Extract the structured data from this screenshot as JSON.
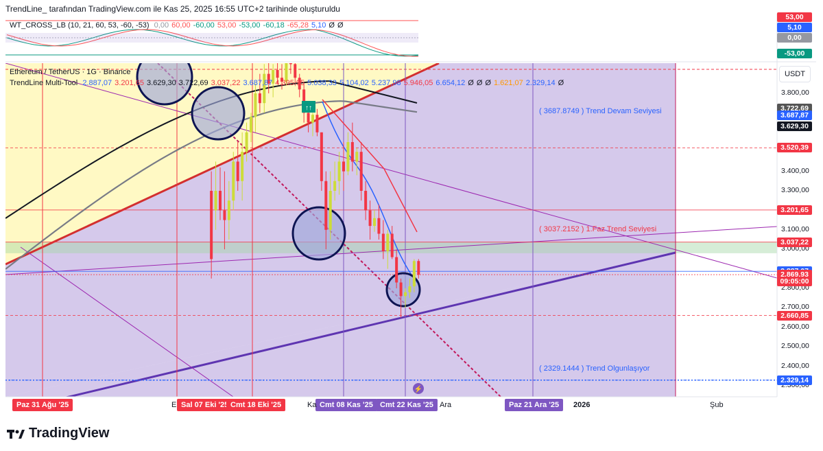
{
  "header": {
    "text": "TrendLine_ tarafından TradingView.com ile Kas 25, 2025 16:55 UTC+2 tarihinde oluşturuldu"
  },
  "oscillator": {
    "title": "WT_CROSS_LB (10, 21, 60, 53, -60, -53)",
    "values": [
      "0,00",
      "60,00",
      "-60,00",
      "53,00",
      "-53,00",
      "-60,18",
      "-65,28",
      "5,10",
      "Ø",
      "Ø"
    ],
    "value_colors": [
      "#9598a1",
      "#ff5252",
      "#089981",
      "#ff5252",
      "#089981",
      "#089981",
      "#ff5252",
      "#2962ff",
      "#131722",
      "#131722"
    ],
    "axis_tags": [
      {
        "label": "53,00",
        "color": "#f23645"
      },
      {
        "label": "5,10",
        "color": "#2962ff"
      },
      {
        "label": "0,00",
        "color": "#9598a1"
      },
      {
        "label": "-53,00",
        "color": "#089981"
      }
    ]
  },
  "main_legend": {
    "symbol": "Ethereum / TetherUS · 1G · Binance",
    "tool": "TrendLine Multi-Tool",
    "tool_values": [
      "2.887,07",
      "3.201,65",
      "3.629,30",
      "3.722,69",
      "3.037,22",
      "3.687,87",
      "4.395,95",
      "5.038,33",
      "5.104,02",
      "5.237,98",
      "5.946,05",
      "6.654,12",
      "Ø",
      "Ø",
      "Ø",
      "1.621,07",
      "2.329,14",
      "Ø"
    ],
    "tool_value_colors": [
      "#2962ff",
      "#f23645",
      "#131722",
      "#131722",
      "#f23645",
      "#2962ff",
      "#f23645",
      "#2962ff",
      "#2962ff",
      "#2962ff",
      "#f23645",
      "#2962ff",
      "#131722",
      "#131722",
      "#131722",
      "#ff9800",
      "#2962ff",
      "#131722"
    ]
  },
  "currency": "USDT",
  "price_axis": {
    "ticks": [
      "3.800,00",
      "3.400,00",
      "3.300,00",
      "3.100,00",
      "3.000,00",
      "2.800,00",
      "2.700,00",
      "2.600,00",
      "2.500,00",
      "2.400,00",
      "2.300,00"
    ],
    "tags": [
      {
        "label": "3.722,69",
        "color": "#555555",
        "price": 3722.69
      },
      {
        "label": "3.687,87",
        "color": "#2962ff",
        "price": 3687.87
      },
      {
        "label": "3.629,30",
        "color": "#131722",
        "price": 3629.3
      },
      {
        "label": "3.520,39",
        "color": "#f23645",
        "price": 3520.39
      },
      {
        "label": "3.201,65",
        "color": "#f23645",
        "price": 3201.65
      },
      {
        "label": "3.037,22",
        "color": "#f23645",
        "price": 3037.22
      },
      {
        "label": "2.887,07",
        "color": "#2962ff",
        "price": 2887.07
      },
      {
        "label": "2.869,93",
        "color": "#f23645",
        "price": 2869.93
      },
      {
        "label": "09:05:00",
        "color": "#f23645",
        "price": 2835
      },
      {
        "label": "2.660,85",
        "color": "#f23645",
        "price": 2660.85
      },
      {
        "label": "2.329,14",
        "color": "#2962ff",
        "price": 2329.14
      }
    ]
  },
  "annotations": [
    {
      "text": "( 3687.8749  ) Trend Devam Seviyesi",
      "color": "#2962ff",
      "price": 3705
    },
    {
      "text": "( 3037.2152  ) 1.Faz Trend Seviyesi",
      "color": "#f23645",
      "price": 3100
    },
    {
      "text": "( 2329.1444  ) Trend Olgunlaşıyor",
      "color": "#2962ff",
      "price": 2385
    }
  ],
  "time_axis": {
    "badges": [
      {
        "label": "Paz 31 Ağu '25",
        "color": "#f23645"
      },
      {
        "label": "Sal 07 Eki '25",
        "color": "#f23645"
      },
      {
        "label": "Cmt 18 Eki '25",
        "color": "#f23645"
      },
      {
        "label": "Cmt 08 Kas '25",
        "color": "#7e57c2"
      },
      {
        "label": "Cmt 22 Kas '25",
        "color": "#7e57c2"
      },
      {
        "label": "Paz 21 Ara '25",
        "color": "#7e57c2"
      }
    ],
    "plain": [
      "E",
      "Ka",
      "Ara",
      "2026",
      "Şub"
    ]
  },
  "footer": {
    "brand": "TradingView"
  },
  "chart_data": {
    "type": "candlestick",
    "symbol": "ETHUSDT",
    "timeframe": "1D",
    "ylim": [
      2300,
      3870
    ],
    "candles": [
      {
        "x": "2025-10-09",
        "o": 3300,
        "h": 3400,
        "l": 2850,
        "c": 2950
      },
      {
        "x": "2025-10-10",
        "o": 3200,
        "h": 3450,
        "l": 3100,
        "c": 3300
      },
      {
        "x": "2025-10-11",
        "o": 3300,
        "h": 3420,
        "l": 3150,
        "c": 3200
      },
      {
        "x": "2025-10-12",
        "o": 3200,
        "h": 3400,
        "l": 3000,
        "c": 3150
      },
      {
        "x": "2025-10-13",
        "o": 3150,
        "h": 3350,
        "l": 3050,
        "c": 3250
      },
      {
        "x": "2025-10-14",
        "o": 3250,
        "h": 3500,
        "l": 3200,
        "c": 3450
      },
      {
        "x": "2025-10-15",
        "o": 3450,
        "h": 3550,
        "l": 3300,
        "c": 3350
      },
      {
        "x": "2025-10-16",
        "o": 3350,
        "h": 3600,
        "l": 3250,
        "c": 3500
      },
      {
        "x": "2025-10-17",
        "o": 3500,
        "h": 3650,
        "l": 3450,
        "c": 3600
      },
      {
        "x": "2025-10-18",
        "o": 3600,
        "h": 3700,
        "l": 3550,
        "c": 3680
      },
      {
        "x": "2025-10-19",
        "o": 3680,
        "h": 3850,
        "l": 3600,
        "c": 3800
      },
      {
        "x": "2025-10-20",
        "o": 3800,
        "h": 3900,
        "l": 3700,
        "c": 3750
      },
      {
        "x": "2025-10-21",
        "o": 3750,
        "h": 3950,
        "l": 3700,
        "c": 3900
      },
      {
        "x": "2025-10-22",
        "o": 3900,
        "h": 4000,
        "l": 3800,
        "c": 3850
      },
      {
        "x": "2025-10-23",
        "o": 3850,
        "h": 3950,
        "l": 3780,
        "c": 3920
      },
      {
        "x": "2025-10-24",
        "o": 3920,
        "h": 4000,
        "l": 3850,
        "c": 3880
      },
      {
        "x": "2025-10-25",
        "o": 3880,
        "h": 3950,
        "l": 3820,
        "c": 3860
      },
      {
        "x": "2025-10-26",
        "o": 3860,
        "h": 4050,
        "l": 3840,
        "c": 4000
      },
      {
        "x": "2025-10-27",
        "o": 4000,
        "h": 4100,
        "l": 3900,
        "c": 3950
      },
      {
        "x": "2025-10-28",
        "o": 3950,
        "h": 4000,
        "l": 3850,
        "c": 3880
      },
      {
        "x": "2025-10-29",
        "o": 3880,
        "h": 3900,
        "l": 3780,
        "c": 3820
      },
      {
        "x": "2025-10-30",
        "o": 3820,
        "h": 3850,
        "l": 3650,
        "c": 3700
      },
      {
        "x": "2025-10-31",
        "o": 3700,
        "h": 3750,
        "l": 3600,
        "c": 3650
      },
      {
        "x": "2025-11-01",
        "o": 3650,
        "h": 3700,
        "l": 3580,
        "c": 3690
      },
      {
        "x": "2025-11-02",
        "o": 3690,
        "h": 3720,
        "l": 3580,
        "c": 3600
      },
      {
        "x": "2025-11-03",
        "o": 3600,
        "h": 3600,
        "l": 3300,
        "c": 3350
      },
      {
        "x": "2025-11-04",
        "o": 3350,
        "h": 3400,
        "l": 3000,
        "c": 3100
      },
      {
        "x": "2025-11-05",
        "o": 3100,
        "h": 3400,
        "l": 3050,
        "c": 3300
      },
      {
        "x": "2025-11-06",
        "o": 3300,
        "h": 3450,
        "l": 3250,
        "c": 3350
      },
      {
        "x": "2025-11-07",
        "o": 3350,
        "h": 3500,
        "l": 3280,
        "c": 3450
      },
      {
        "x": "2025-11-08",
        "o": 3450,
        "h": 3550,
        "l": 3300,
        "c": 3400
      },
      {
        "x": "2025-11-09",
        "o": 3400,
        "h": 3600,
        "l": 3380,
        "c": 3550
      },
      {
        "x": "2025-11-10",
        "o": 3550,
        "h": 3650,
        "l": 3400,
        "c": 3450
      },
      {
        "x": "2025-11-11",
        "o": 3450,
        "h": 3520,
        "l": 3380,
        "c": 3500
      },
      {
        "x": "2025-11-12",
        "o": 3500,
        "h": 3550,
        "l": 3250,
        "c": 3300
      },
      {
        "x": "2025-11-13",
        "o": 3300,
        "h": 3350,
        "l": 3150,
        "c": 3200
      },
      {
        "x": "2025-11-14",
        "o": 3200,
        "h": 3250,
        "l": 3050,
        "c": 3120
      },
      {
        "x": "2025-11-15",
        "o": 3120,
        "h": 3200,
        "l": 3090,
        "c": 3160
      },
      {
        "x": "2025-11-16",
        "o": 3160,
        "h": 3230,
        "l": 3050,
        "c": 3080
      },
      {
        "x": "2025-11-17",
        "o": 3080,
        "h": 3150,
        "l": 2950,
        "c": 2990
      },
      {
        "x": "2025-11-18",
        "o": 2990,
        "h": 3100,
        "l": 2900,
        "c": 3080
      },
      {
        "x": "2025-11-19",
        "o": 3080,
        "h": 3120,
        "l": 2950,
        "c": 2960
      },
      {
        "x": "2025-11-20",
        "o": 2960,
        "h": 3000,
        "l": 2800,
        "c": 2830
      },
      {
        "x": "2025-11-21",
        "o": 2830,
        "h": 2850,
        "l": 2650,
        "c": 2760
      },
      {
        "x": "2025-11-22",
        "o": 2760,
        "h": 2800,
        "l": 2700,
        "c": 2780
      },
      {
        "x": "2025-11-23",
        "o": 2780,
        "h": 2850,
        "l": 2750,
        "c": 2810
      },
      {
        "x": "2025-11-24",
        "o": 2810,
        "h": 2950,
        "l": 2780,
        "c": 2940
      },
      {
        "x": "2025-11-25",
        "o": 2940,
        "h": 2950,
        "l": 2850,
        "c": 2870
      }
    ],
    "horizontal_levels": [
      3722.69,
      3687.87,
      3629.3,
      3520.39,
      3201.65,
      3037.22,
      2887.07,
      2869.93,
      2660.85,
      2329.14
    ],
    "vertical_dates": [
      "Paz 31 Ağu '25",
      "Sal 07 Eki '25",
      "Cmt 18 Eki '25",
      "Cmt 08 Kas '25",
      "Cmt 22 Kas '25",
      "Paz 21 Ara '25"
    ]
  }
}
